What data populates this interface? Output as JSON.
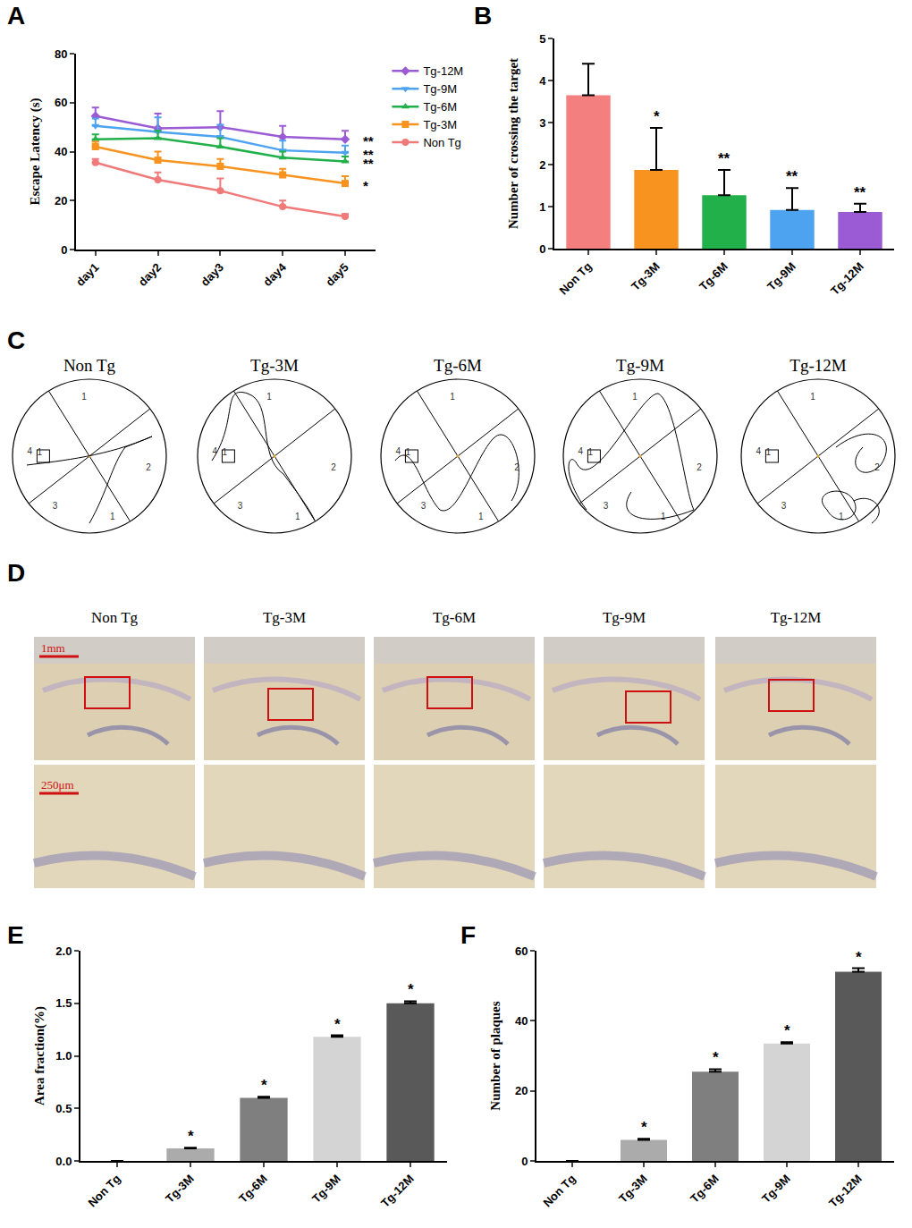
{
  "chart_data": [
    {
      "panel": "A",
      "type": "line",
      "categories": [
        "day1",
        "day2",
        "day3",
        "day4",
        "day5"
      ],
      "y_label": "Escape Latency (s)",
      "ylim": [
        0,
        80
      ],
      "yticks": [
        0,
        20,
        40,
        60,
        80
      ],
      "legend": "right",
      "grid": false,
      "series": [
        {
          "name": "Tg-12M",
          "color": "#9b5bd4",
          "marker": "diamond",
          "values": [
            54.5,
            49.5,
            50,
            46,
            45
          ],
          "errors": [
            3.5,
            6,
            6.5,
            4.5,
            3.5
          ],
          "significance": "**"
        },
        {
          "name": "Tg-9M",
          "color": "#4da3f0",
          "marker": "triangle-down",
          "values": [
            50.5,
            48,
            46,
            40.5,
            39.5
          ],
          "errors": [
            3,
            6,
            5,
            4,
            3
          ],
          "significance": "**"
        },
        {
          "name": "Tg-6M",
          "color": "#22b04a",
          "marker": "triangle-up",
          "values": [
            45,
            45.5,
            42,
            37.5,
            36
          ],
          "errors": [
            2,
            3,
            3.5,
            2.5,
            2
          ],
          "significance": "**"
        },
        {
          "name": "Tg-3M",
          "color": "#f7931e",
          "marker": "square",
          "values": [
            42,
            36.5,
            34,
            30.5,
            27
          ],
          "errors": [
            2,
            3.5,
            3,
            2.5,
            3
          ],
          "significance": "*"
        },
        {
          "name": "Non Tg",
          "color": "#f07a7a",
          "marker": "circle",
          "values": [
            35.5,
            28.5,
            24,
            17.5,
            13.5
          ],
          "errors": [
            1.5,
            3,
            5,
            2.5,
            1
          ],
          "significance": null
        }
      ]
    },
    {
      "panel": "B",
      "type": "bar",
      "categories": [
        "Non Tg",
        "Tg-3M",
        "Tg-6M",
        "Tg-9M",
        "Tg-12M"
      ],
      "y_label": "Number of crossing the target",
      "ylim": [
        0,
        5
      ],
      "yticks": [
        0,
        1,
        2,
        3,
        4,
        5
      ],
      "grid": false,
      "values": [
        3.65,
        1.87,
        1.27,
        0.92,
        0.87
      ],
      "errors": [
        0.75,
        1.0,
        0.6,
        0.52,
        0.2
      ],
      "colors": [
        "#f47f7f",
        "#f7931e",
        "#22b04a",
        "#4da3f0",
        "#9b5bd4"
      ],
      "significance": [
        null,
        "*",
        "**",
        "**",
        "**"
      ]
    },
    {
      "panel": "E",
      "type": "bar",
      "categories": [
        "Non Tg",
        "Tg-3M",
        "Tg-6M",
        "Tg-9M",
        "Tg-12M"
      ],
      "y_label": "Area fraction(%)",
      "ylim": [
        0,
        2
      ],
      "yticks": [
        {
          "value": 0,
          "label": "0.0"
        },
        {
          "value": 0.5,
          "label": "0.5"
        },
        {
          "value": 1,
          "label": "1.0"
        },
        {
          "value": 1.5,
          "label": "1.5"
        },
        {
          "value": 2,
          "label": "2.0"
        }
      ],
      "grid": false,
      "values": [
        0,
        0.12,
        0.6,
        1.18,
        1.5
      ],
      "errors": [
        0,
        0.005,
        0.01,
        0.015,
        0.02
      ],
      "colors": [
        "#9a9a9a",
        "#ababab",
        "#7f7f7f",
        "#d4d4d4",
        "#595959"
      ],
      "significance": [
        null,
        "*",
        "*",
        "*",
        "*"
      ]
    },
    {
      "panel": "F",
      "type": "bar",
      "categories": [
        "Non Tg",
        "Tg-3M",
        "Tg-6M",
        "Tg-9M",
        "Tg-12M"
      ],
      "y_label": "Number of plaques",
      "ylim": [
        0,
        60
      ],
      "yticks": [
        0,
        20,
        40,
        60
      ],
      "grid": false,
      "values": [
        0,
        6,
        25.5,
        33.5,
        54
      ],
      "errors": [
        0,
        0.3,
        0.7,
        0.4,
        1.0
      ],
      "colors": [
        "#9a9a9a",
        "#ababab",
        "#7f7f7f",
        "#d4d4d4",
        "#595959"
      ],
      "significance": [
        null,
        "*",
        "*",
        "*",
        "*"
      ]
    }
  ],
  "panel_C": {
    "panel": "C",
    "titles": [
      "Non Tg",
      "Tg-3M",
      "Tg-6M",
      "Tg-9M",
      "Tg-12M"
    ],
    "quadrant_labels": [
      "1",
      "2",
      "3",
      "4"
    ],
    "platform_label": "1",
    "start_label": "1"
  },
  "panel_D": {
    "panel": "D",
    "titles": [
      "Non Tg",
      "Tg-3M",
      "Tg-6M",
      "Tg-9M",
      "Tg-12M"
    ],
    "scale_bars": [
      "1mm",
      "250μm"
    ]
  }
}
